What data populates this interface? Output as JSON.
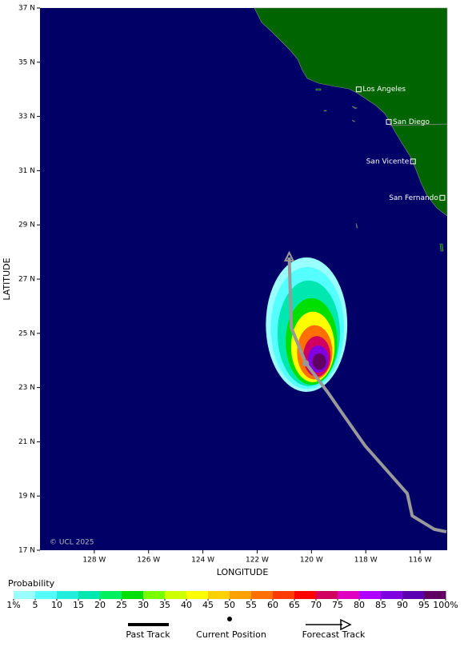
{
  "chart_data": {
    "type": "track-map",
    "xlabel": "LONGITUDE",
    "ylabel": "LATITUDE",
    "xlim": [
      -130,
      -115
    ],
    "ylim": [
      17,
      37
    ],
    "xticks": [
      {
        "value": -128,
        "label": "128 W"
      },
      {
        "value": -126,
        "label": "126 W"
      },
      {
        "value": -124,
        "label": "124 W"
      },
      {
        "value": -122,
        "label": "122 W"
      },
      {
        "value": -120,
        "label": "120 W"
      },
      {
        "value": -118,
        "label": "118 W"
      },
      {
        "value": -116,
        "label": "116 W"
      }
    ],
    "yticks": [
      {
        "value": 17,
        "label": "17 N"
      },
      {
        "value": 19,
        "label": "19 N"
      },
      {
        "value": 21,
        "label": "21 N"
      },
      {
        "value": 23,
        "label": "23 N"
      },
      {
        "value": 25,
        "label": "25 N"
      },
      {
        "value": 27,
        "label": "27 N"
      },
      {
        "value": 29,
        "label": "29 N"
      },
      {
        "value": 31,
        "label": "31 N"
      },
      {
        "value": 33,
        "label": "33 N"
      },
      {
        "value": 35,
        "label": "35 N"
      },
      {
        "value": 37,
        "label": "37 N"
      }
    ],
    "cities": [
      {
        "name": "Los Angeles",
        "lon": -118.26,
        "lat": 34.0
      },
      {
        "name": "San Diego",
        "lon": -117.15,
        "lat": 32.8
      },
      {
        "name": "San Vicente",
        "lon": -116.26,
        "lat": 31.34
      },
      {
        "name": "San Fernando",
        "lon": -115.18,
        "lat": 30.0
      }
    ],
    "track": {
      "color": "#999999",
      "lon": [
        -120.82,
        -120.74,
        -120.21,
        -119.41,
        -118.76,
        -118.03,
        -116.47,
        -116.29,
        -115.47,
        -115.03
      ],
      "lat": [
        27.8,
        25.2,
        23.9,
        22.84,
        21.9,
        20.86,
        19.09,
        18.27,
        17.77,
        17.68
      ]
    },
    "current_position": {
      "lon": -120.21,
      "lat": 23.9
    },
    "probability_contours": [
      {
        "level": 1,
        "lon": -120.18,
        "lat": 25.32,
        "rx": 1.5,
        "ry": 2.48
      },
      {
        "level": 5,
        "lon": -120.15,
        "lat": 25.2,
        "rx": 1.35,
        "ry": 2.25
      },
      {
        "level": 15,
        "lon": -120.1,
        "lat": 25.0,
        "rx": 1.15,
        "ry": 1.95
      },
      {
        "level": 25,
        "lon": -120.0,
        "lat": 24.7,
        "rx": 0.95,
        "ry": 1.6
      },
      {
        "level": 40,
        "lon": -119.95,
        "lat": 24.5,
        "rx": 0.8,
        "ry": 1.3
      },
      {
        "level": 55,
        "lon": -119.88,
        "lat": 24.3,
        "rx": 0.65,
        "ry": 1.0
      },
      {
        "level": 70,
        "lon": -119.8,
        "lat": 24.15,
        "rx": 0.5,
        "ry": 0.75
      },
      {
        "level": 85,
        "lon": -119.75,
        "lat": 24.05,
        "rx": 0.38,
        "ry": 0.5
      },
      {
        "level": 95,
        "lon": -119.71,
        "lat": 23.96,
        "rx": 0.25,
        "ry": 0.3
      }
    ],
    "colorbar": {
      "title": "Probability",
      "ticks": [
        {
          "value": 1,
          "label": "1%"
        },
        5,
        10,
        15,
        20,
        25,
        30,
        35,
        40,
        45,
        50,
        55,
        60,
        65,
        70,
        75,
        80,
        85,
        90,
        95,
        {
          "value": 100,
          "label": "100%"
        }
      ],
      "colors": [
        "#99ffff",
        "#55ffff",
        "#22eedd",
        "#00e8b0",
        "#00f060",
        "#00e000",
        "#77ff00",
        "#ccff00",
        "#ffff00",
        "#ffd000",
        "#ffa000",
        "#ff7000",
        "#ff3c00",
        "#ff0000",
        "#d00060",
        "#e000c0",
        "#b000ff",
        "#8000e0",
        "#5a00b0",
        "#600060"
      ]
    },
    "legend": [
      "Past Track",
      "Current Position",
      "Forecast Track"
    ],
    "copyright": "© UCL 2025"
  }
}
